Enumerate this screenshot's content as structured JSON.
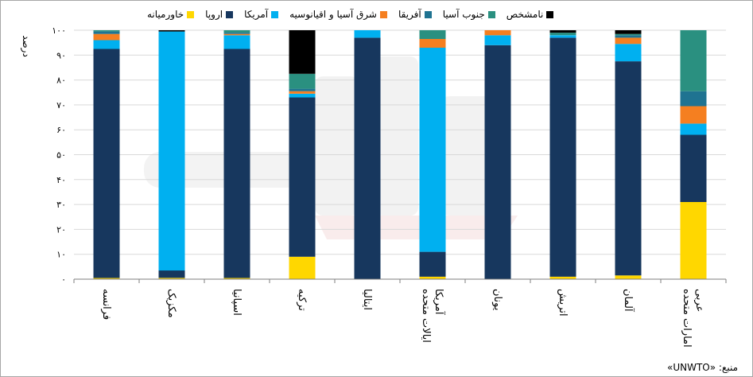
{
  "chart_data": {
    "type": "bar",
    "stacked": true,
    "ylabel": "درصد",
    "ylim": [
      0,
      100
    ],
    "yticks": [
      "۰",
      "۱۰",
      "۲۰",
      "۳۰",
      "۴۰",
      "۵۰",
      "۶۰",
      "۷۰",
      "۸۰",
      "۹۰",
      "۱۰۰"
    ],
    "grid": true,
    "legend_position": "top",
    "categories": [
      [
        "فرانسه"
      ],
      [
        "مکزیک"
      ],
      [
        "اسپانیا"
      ],
      [
        "ترکیه"
      ],
      [
        "ایتالیا"
      ],
      [
        "ایالات متحده",
        "آمریکا"
      ],
      [
        "یونان"
      ],
      [
        "اتریش"
      ],
      [
        "آلمان"
      ],
      [
        "امارات متحده",
        "عربی"
      ]
    ],
    "series": [
      {
        "name": "خاورمیانه",
        "color": "#ffd700",
        "values": [
          0.5,
          0.5,
          0.5,
          9,
          0,
          1,
          0,
          1,
          1.5,
          31
        ]
      },
      {
        "name": "اروپا",
        "color": "#17375e",
        "values": [
          92,
          3,
          92,
          64,
          97,
          10,
          94,
          96,
          86,
          27
        ]
      },
      {
        "name": "آمریکا",
        "color": "#00b0f0",
        "values": [
          3.5,
          96,
          5.5,
          1.5,
          3,
          82,
          4,
          1,
          7,
          4.5
        ]
      },
      {
        "name": "شرق آسیا و اقیانوسیه",
        "color": "#f57f20",
        "values": [
          2.5,
          0,
          0.5,
          1,
          0,
          3.5,
          2,
          0,
          2.5,
          7
        ]
      },
      {
        "name": "آفریقا",
        "color": "#1f7391",
        "values": [
          1,
          0,
          0.5,
          1,
          0,
          0,
          0,
          0,
          1,
          6
        ]
      },
      {
        "name": "جنوب آسیا",
        "color": "#2a9080",
        "values": [
          0.5,
          0,
          1,
          6,
          0,
          3.5,
          0,
          1,
          0.5,
          24.5
        ]
      },
      {
        "name": "نامشخص",
        "color": "#000000",
        "values": [
          0,
          0.5,
          0,
          17.5,
          0,
          0,
          0,
          1,
          1.5,
          0
        ]
      }
    ]
  },
  "source_text": "منبع: «UNWTO»"
}
